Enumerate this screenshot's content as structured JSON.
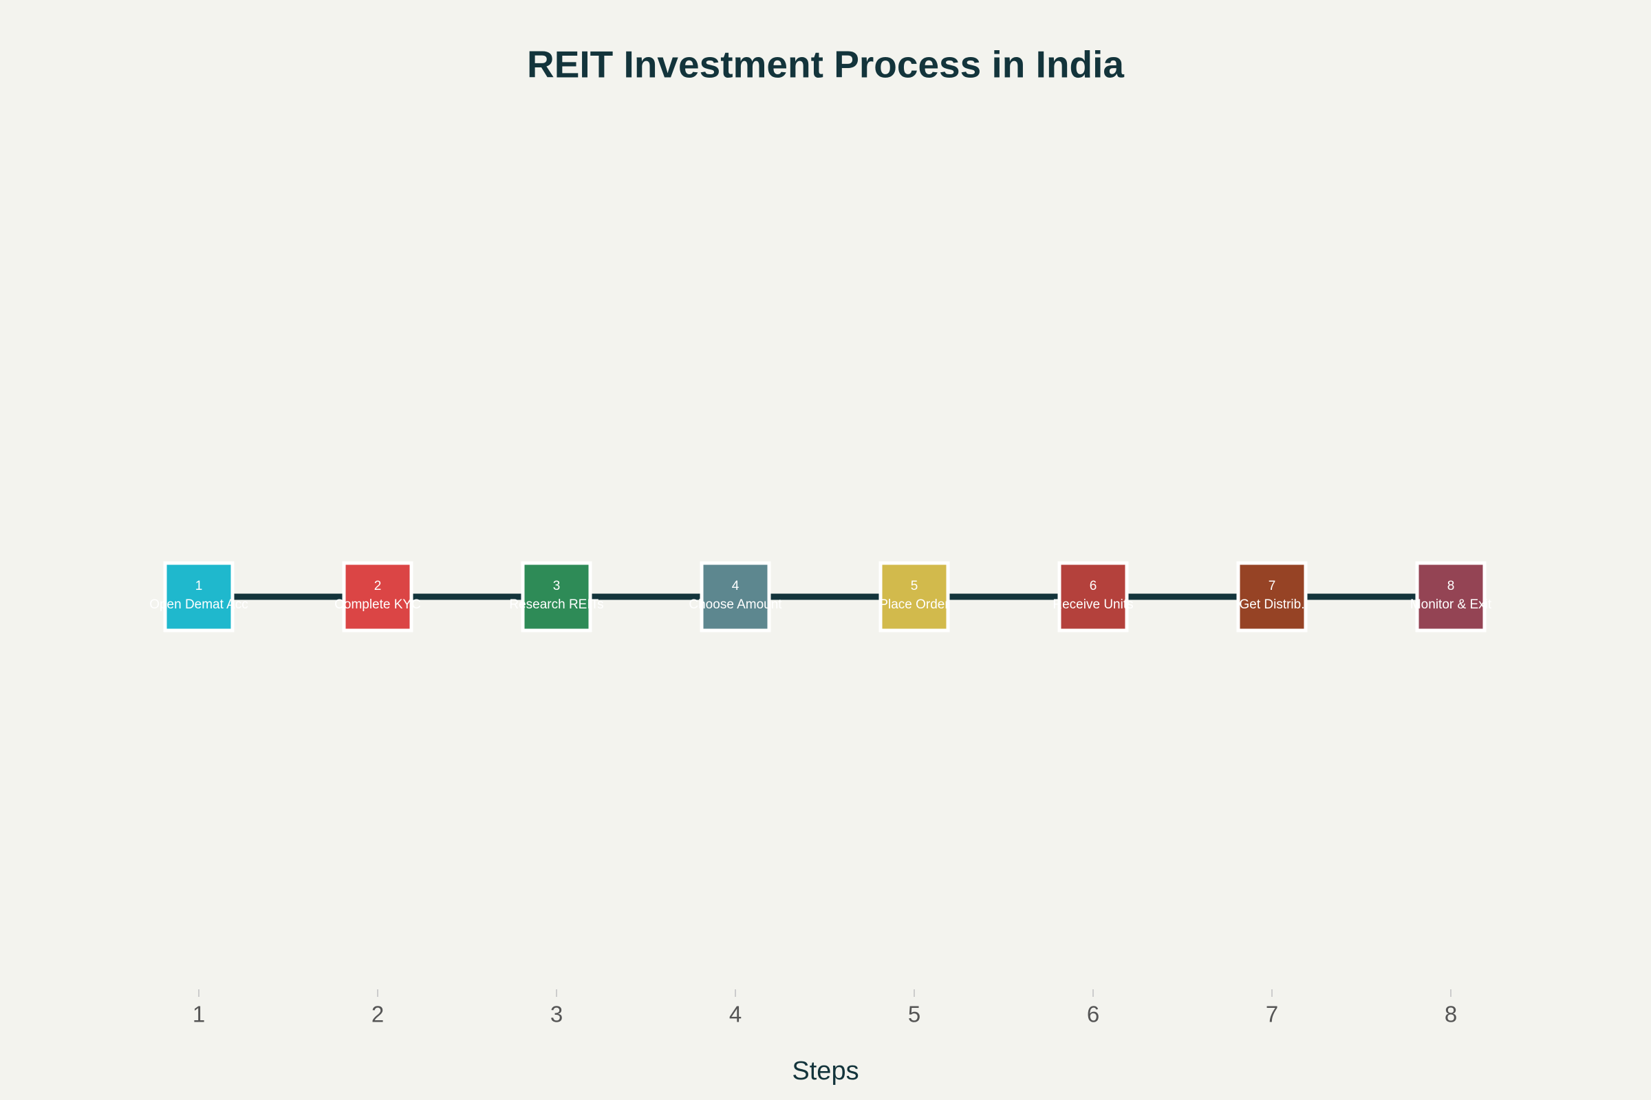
{
  "chart_data": {
    "type": "scatter",
    "title": "REIT Investment Process in India",
    "x_label": "Steps",
    "x": [
      1,
      2,
      3,
      4,
      5,
      6,
      7,
      8
    ],
    "values": [
      1,
      1,
      1,
      1,
      1,
      1,
      1,
      1
    ],
    "labels": [
      "Open Demat Acc",
      "Complete KYC",
      "Research REITs",
      "Choose Amount",
      "Place Order",
      "Receive Units",
      "Get Distrib.",
      "Monitor & Exit"
    ],
    "colors": [
      "#1FB8CD",
      "#DB4545",
      "#2E8B57",
      "#5D878F",
      "#D2BA4C",
      "#B4413C",
      "#964325",
      "#944454"
    ],
    "line_color": "#13343B",
    "xlim": [
      0.5,
      8.5
    ],
    "xticks": [
      1,
      2,
      3,
      4,
      5,
      6,
      7,
      8
    ],
    "ylim": [
      0,
      2
    ]
  }
}
